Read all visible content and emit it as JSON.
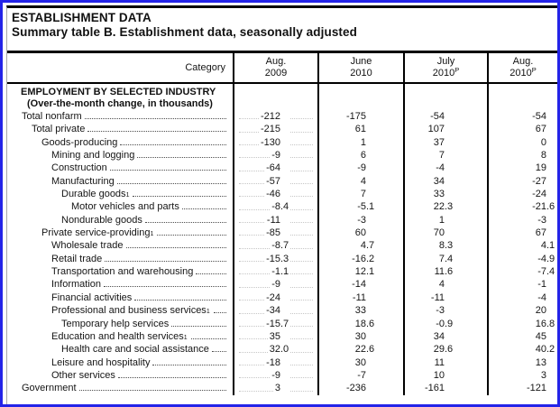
{
  "page": {
    "title_line1": "ESTABLISHMENT DATA",
    "title_line2": "Summary table B. Establishment data, seasonally adjusted"
  },
  "table": {
    "columns": [
      {
        "label": "Category"
      },
      {
        "line1": "Aug.",
        "line2": "2009",
        "sup": ""
      },
      {
        "line1": "June",
        "line2": "2010",
        "sup": ""
      },
      {
        "line1": "July",
        "line2": "2010",
        "sup": "P"
      },
      {
        "line1": "Aug.",
        "line2": "2010",
        "sup": "P"
      }
    ],
    "section": {
      "line1": "EMPLOYMENT BY SELECTED INDUSTRY",
      "line2": "(Over-the-month change, in thousands)"
    },
    "rows": [
      {
        "label": "Total nonfarm",
        "level": 0,
        "values": [
          "-212",
          "-175",
          "-54",
          "-54"
        ]
      },
      {
        "label": "Total private",
        "level": 1,
        "values": [
          "-215",
          "61",
          "107",
          "67"
        ]
      },
      {
        "label": "Goods-producing",
        "level": 2,
        "values": [
          "-130",
          "1",
          "37",
          "0"
        ]
      },
      {
        "label": "Mining and logging",
        "level": 3,
        "values": [
          "-9",
          "6",
          "7",
          "8"
        ]
      },
      {
        "label": "Construction",
        "level": 3,
        "values": [
          "-64",
          "-9",
          "-4",
          "19"
        ]
      },
      {
        "label": "Manufacturing",
        "level": 3,
        "values": [
          "-57",
          "4",
          "34",
          "-27"
        ]
      },
      {
        "label": "Durable goods",
        "sup": "1",
        "level": 4,
        "values": [
          "-46",
          "7",
          "33",
          "-24"
        ]
      },
      {
        "label": "Motor vehicles and parts",
        "level": 5,
        "values": [
          "-8.4",
          "-5.1",
          "22.3",
          "-21.6"
        ]
      },
      {
        "label": "Nondurable goods",
        "level": 4,
        "values": [
          "-11",
          "-3",
          "1",
          "-3"
        ]
      },
      {
        "label": "Private service-providing",
        "sup": "1",
        "level": 2,
        "values": [
          "-85",
          "60",
          "70",
          "67"
        ]
      },
      {
        "label": "Wholesale trade",
        "level": 3,
        "values": [
          "-8.7",
          "4.7",
          "8.3",
          "4.1"
        ]
      },
      {
        "label": "Retail trade",
        "level": 3,
        "values": [
          "-15.3",
          "-16.2",
          "7.4",
          "-4.9"
        ]
      },
      {
        "label": "Transportation and warehousing",
        "level": 3,
        "values": [
          "-1.1",
          "12.1",
          "11.6",
          "-7.4"
        ]
      },
      {
        "label": "Information",
        "level": 3,
        "values": [
          "-9",
          "-14",
          "4",
          "-1"
        ]
      },
      {
        "label": "Financial activities",
        "level": 3,
        "values": [
          "-24",
          "-11",
          "-11",
          "-4"
        ]
      },
      {
        "label": "Professional and business services",
        "sup": "1",
        "level": 3,
        "values": [
          "-34",
          "33",
          "-3",
          "20"
        ]
      },
      {
        "label": "Temporary help services",
        "level": 4,
        "values": [
          "-15.7",
          "18.6",
          "-0.9",
          "16.8"
        ]
      },
      {
        "label": "Education and health services",
        "sup": "1",
        "level": 3,
        "values": [
          "35",
          "30",
          "34",
          "45"
        ]
      },
      {
        "label": "Health care and social assistance",
        "level": 4,
        "values": [
          "32.0",
          "22.6",
          "29.6",
          "40.2"
        ]
      },
      {
        "label": "Leisure and hospitality",
        "level": 3,
        "values": [
          "-18",
          "30",
          "11",
          "13"
        ]
      },
      {
        "label": "Other services",
        "level": 3,
        "values": [
          "-9",
          "-7",
          "10",
          "3"
        ]
      },
      {
        "label": "Government",
        "level": 0,
        "values": [
          "3",
          "-236",
          "-161",
          "-121"
        ]
      }
    ]
  },
  "style": {
    "frame_color": "#2424e8",
    "rule_color": "#000000",
    "leader_color": "#4d4d4d",
    "faint_leader_color": "#c6c6c6"
  }
}
